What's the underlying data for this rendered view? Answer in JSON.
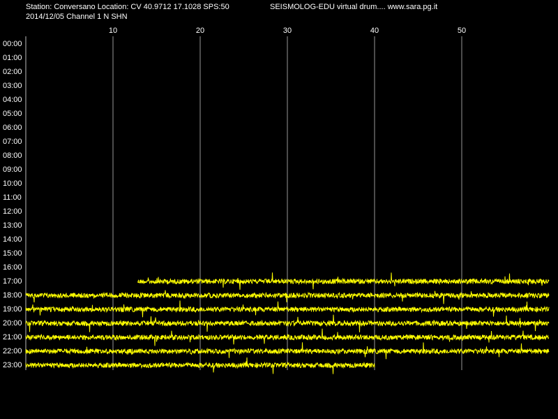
{
  "header": {
    "line1_left": "Station: Conversano Location: CV 40.9712 17.1028 SPS:50",
    "line1_right": "SEISMOLOG-EDU virtual drum.... www.sara.pg.it",
    "line2": "2014/12/05  Channel 1 N SHN"
  },
  "drum": {
    "xlim": [
      0,
      60
    ],
    "xticks": [
      10,
      20,
      30,
      40,
      50
    ],
    "rows": [
      "00:00",
      "01:00",
      "02:00",
      "03:00",
      "04:00",
      "05:00",
      "06:00",
      "07:00",
      "08:00",
      "09:00",
      "10:00",
      "11:00",
      "12:00",
      "13:00",
      "14:00",
      "15:00",
      "16:00",
      "17:00",
      "18:00",
      "19:00",
      "20:00",
      "21:00",
      "22:00",
      "23:00"
    ],
    "trace_color": "#ffff00",
    "traces": [
      {
        "row": 17,
        "start": 12.8,
        "end": 60
      },
      {
        "row": 18,
        "start": 0,
        "end": 60
      },
      {
        "row": 19,
        "start": 0,
        "end": 60
      },
      {
        "row": 20,
        "start": 0,
        "end": 60
      },
      {
        "row": 21,
        "start": 0,
        "end": 60
      },
      {
        "row": 22,
        "start": 0,
        "end": 60
      },
      {
        "row": 23,
        "start": 0,
        "end": 40
      }
    ]
  }
}
